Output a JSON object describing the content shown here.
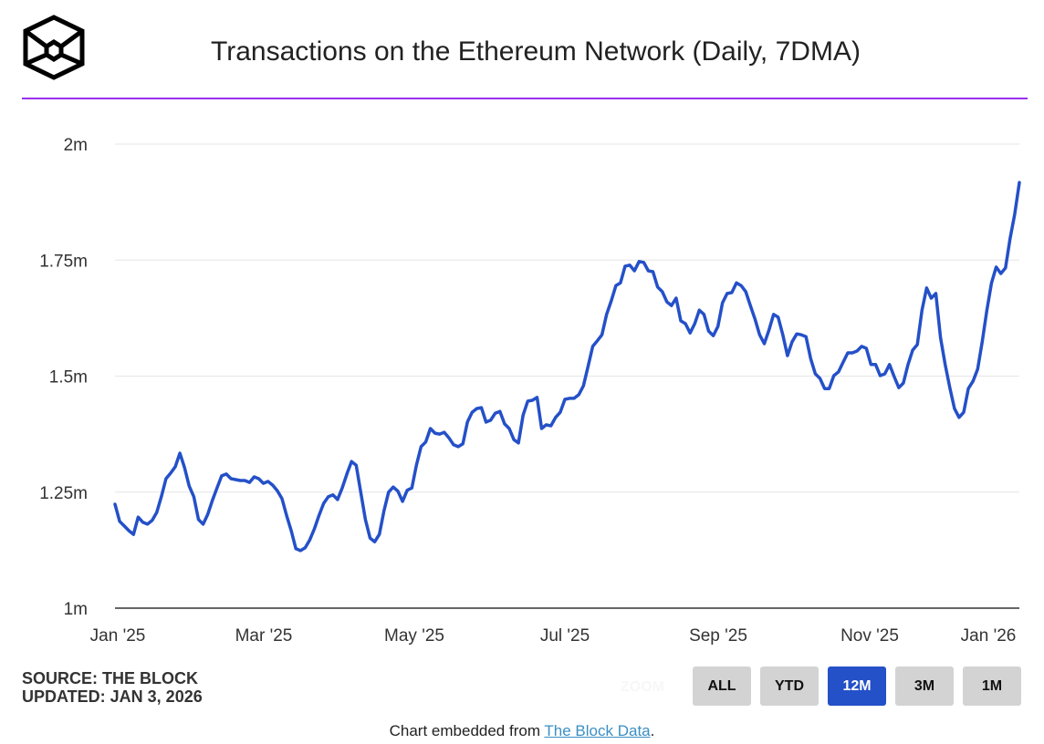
{
  "header": {
    "title": "Transactions on the Ethereum Network (Daily, 7DMA)",
    "logo": "The Block"
  },
  "colors": {
    "line": "#2450c8",
    "accent_rule": "#9b30ef",
    "active_button": "#2450c8"
  },
  "chart_data": {
    "type": "line",
    "title": "Transactions on the Ethereum Network (Daily, 7DMA)",
    "x_range": [
      "2025-01-01",
      "2026-01-03"
    ],
    "x_tick_labels": [
      "Jan '25",
      "Mar '25",
      "May '25",
      "Jul '25",
      "Sep '25",
      "Nov '25",
      "Jan '26"
    ],
    "y_tick_labels": [
      "1m",
      "1.25m",
      "1.5m",
      "1.75m",
      "2m"
    ],
    "y_ticks": [
      1.0,
      1.25,
      1.5,
      1.75,
      2.0
    ],
    "ylim": [
      1.0,
      2.0
    ],
    "y_unit": "millions",
    "grid": true,
    "series": [
      {
        "name": "Transactions (7DMA)",
        "values": [
          1.224,
          1.187,
          1.177,
          1.167,
          1.159,
          1.196,
          1.185,
          1.181,
          1.189,
          1.206,
          1.24,
          1.279,
          1.291,
          1.305,
          1.334,
          1.303,
          1.263,
          1.24,
          1.191,
          1.181,
          1.202,
          1.232,
          1.259,
          1.285,
          1.289,
          1.279,
          1.277,
          1.275,
          1.275,
          1.271,
          1.283,
          1.279,
          1.269,
          1.273,
          1.265,
          1.253,
          1.236,
          1.2,
          1.167,
          1.128,
          1.124,
          1.13,
          1.147,
          1.171,
          1.2,
          1.226,
          1.24,
          1.244,
          1.234,
          1.259,
          1.289,
          1.316,
          1.308,
          1.25,
          1.191,
          1.151,
          1.143,
          1.159,
          1.21,
          1.25,
          1.261,
          1.252,
          1.23,
          1.254,
          1.259,
          1.308,
          1.348,
          1.358,
          1.387,
          1.377,
          1.375,
          1.379,
          1.367,
          1.352,
          1.348,
          1.354,
          1.401,
          1.422,
          1.43,
          1.432,
          1.401,
          1.405,
          1.42,
          1.424,
          1.397,
          1.387,
          1.363,
          1.356,
          1.416,
          1.446,
          1.448,
          1.454,
          1.387,
          1.395,
          1.393,
          1.411,
          1.422,
          1.45,
          1.452,
          1.452,
          1.46,
          1.479,
          1.521,
          1.564,
          1.576,
          1.589,
          1.633,
          1.662,
          1.695,
          1.701,
          1.737,
          1.739,
          1.727,
          1.747,
          1.745,
          1.727,
          1.725,
          1.692,
          1.682,
          1.66,
          1.652,
          1.668,
          1.619,
          1.613,
          1.593,
          1.613,
          1.642,
          1.633,
          1.597,
          1.587,
          1.607,
          1.658,
          1.678,
          1.68,
          1.701,
          1.695,
          1.682,
          1.652,
          1.623,
          1.589,
          1.57,
          1.599,
          1.633,
          1.627,
          1.589,
          1.544,
          1.574,
          1.591,
          1.589,
          1.585,
          1.538,
          1.505,
          1.495,
          1.473,
          1.473,
          1.501,
          1.509,
          1.53,
          1.55,
          1.55,
          1.554,
          1.564,
          1.56,
          1.525,
          1.525,
          1.501,
          1.505,
          1.525,
          1.499,
          1.475,
          1.485,
          1.525,
          1.556,
          1.568,
          1.642,
          1.69,
          1.668,
          1.678,
          1.583,
          1.525,
          1.475,
          1.43,
          1.411,
          1.422,
          1.473,
          1.489,
          1.515,
          1.574,
          1.642,
          1.701,
          1.735,
          1.721,
          1.733,
          1.796,
          1.849,
          1.917
        ]
      }
    ]
  },
  "source": {
    "line1": "SOURCE: THE BLOCK",
    "line2": "UPDATED: JAN 3, 2026"
  },
  "zoom": {
    "label": "ZOOM",
    "buttons": [
      "ALL",
      "YTD",
      "12M",
      "3M",
      "1M"
    ],
    "active": "12M"
  },
  "footer": {
    "prefix": "Chart embedded from ",
    "link": "The Block Data",
    "suffix": "."
  }
}
